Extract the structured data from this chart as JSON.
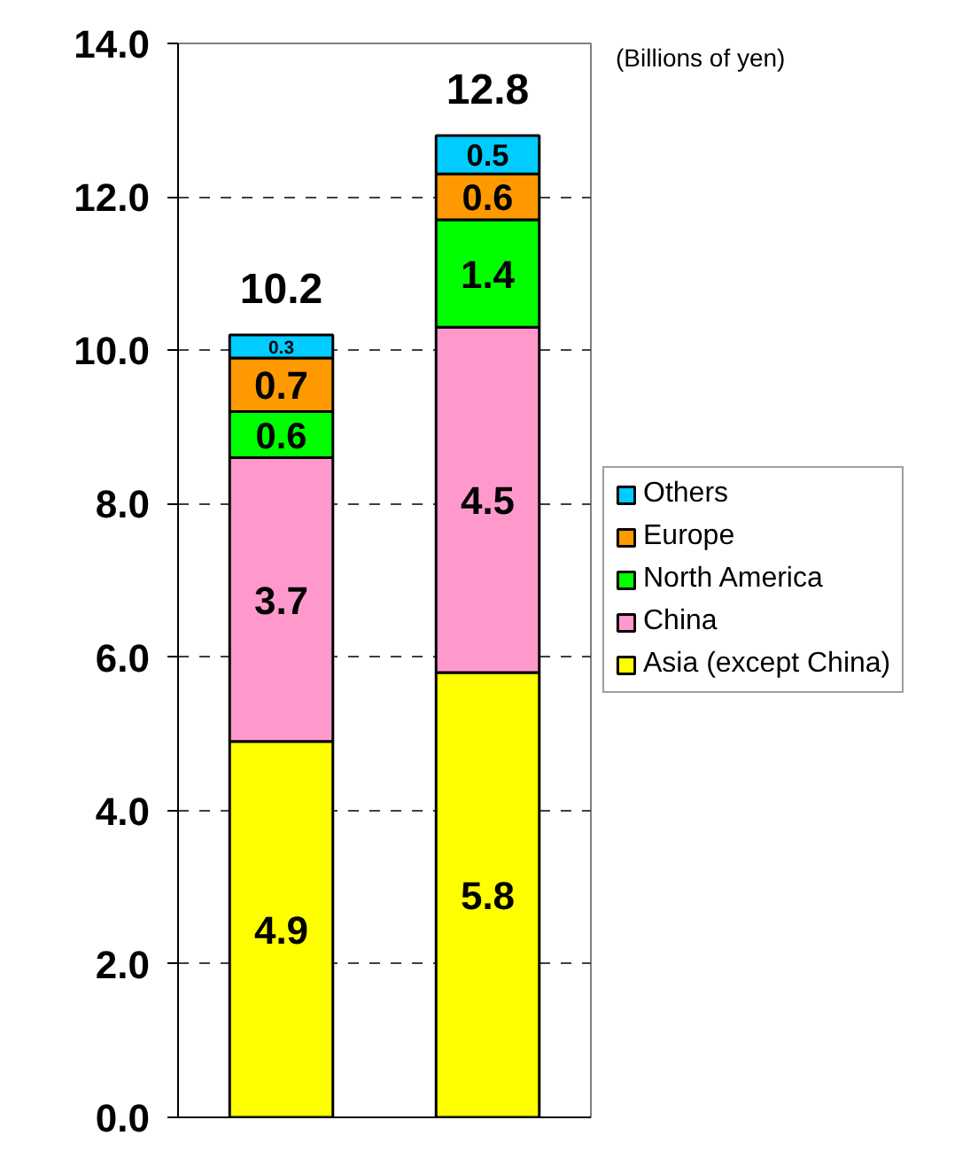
{
  "chart_data": {
    "type": "bar",
    "stacked": true,
    "categories": [
      null,
      null
    ],
    "series": [
      {
        "name": "Asia (except China)",
        "color": "#ffff00",
        "values": [
          4.9,
          5.8
        ]
      },
      {
        "name": "China",
        "color": "#ff99cc",
        "values": [
          3.7,
          4.5
        ]
      },
      {
        "name": "North America",
        "color": "#00ff00",
        "values": [
          0.6,
          1.4
        ]
      },
      {
        "name": "Europe",
        "color": "#ff9900",
        "values": [
          0.7,
          0.6
        ]
      },
      {
        "name": "Others",
        "color": "#00ccff",
        "values": [
          0.3,
          0.5
        ]
      }
    ],
    "ylim": [
      0,
      14
    ],
    "yticks": [
      {
        "value": 0,
        "label": "0.0"
      },
      {
        "value": 2,
        "label": "2.0"
      },
      {
        "value": 4,
        "label": "4.0"
      },
      {
        "value": 6,
        "label": "6.0"
      },
      {
        "value": 8,
        "label": "8.0"
      },
      {
        "value": 10,
        "label": "10.0"
      },
      {
        "value": 12,
        "label": "12.0"
      },
      {
        "value": 14,
        "label": "14.0"
      }
    ],
    "grid": "y",
    "legend": "right",
    "data_labels": true,
    "totals": [
      "10.2",
      "12.8"
    ],
    "annotations": [
      "(Billions of yen)"
    ]
  }
}
